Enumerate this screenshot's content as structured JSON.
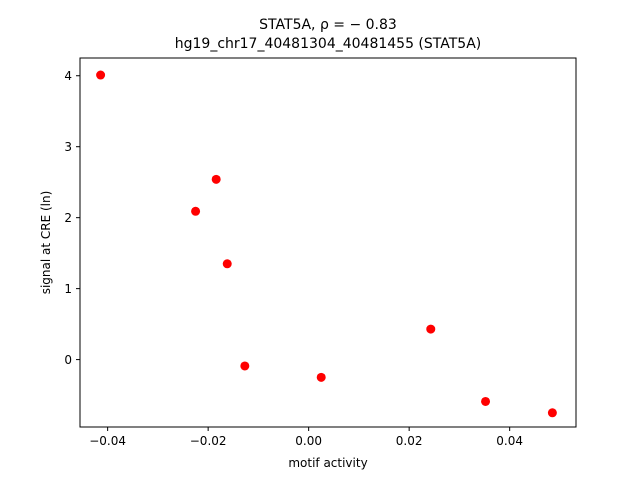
{
  "chart_data": {
    "type": "scatter",
    "title_lines": [
      "STAT5A, ρ = − 0.83",
      "hg19_chr17_40481304_40481455 (STAT5A)"
    ],
    "xlabel": "motif activity",
    "ylabel": "signal at CRE (ln)",
    "xlim": [
      -0.0455,
      0.0532
    ],
    "ylim": [
      -0.95,
      4.25
    ],
    "xticks": [
      -0.04,
      -0.02,
      0.0,
      0.02,
      0.04
    ],
    "xtick_labels": [
      "−0.04",
      "−0.02",
      "0.00",
      "0.02",
      "0.04"
    ],
    "yticks": [
      0,
      1,
      2,
      3,
      4
    ],
    "ytick_labels": [
      "0",
      "1",
      "2",
      "3",
      "4"
    ],
    "grid": false,
    "point_color": "#ff0000",
    "points": [
      {
        "x": -0.0414,
        "y": 4.01
      },
      {
        "x": -0.0184,
        "y": 2.54
      },
      {
        "x": -0.0225,
        "y": 2.09
      },
      {
        "x": -0.0162,
        "y": 1.35
      },
      {
        "x": -0.0127,
        "y": -0.09
      },
      {
        "x": 0.0025,
        "y": -0.25
      },
      {
        "x": 0.0243,
        "y": 0.43
      },
      {
        "x": 0.0352,
        "y": -0.59
      },
      {
        "x": 0.0485,
        "y": -0.75
      }
    ]
  }
}
